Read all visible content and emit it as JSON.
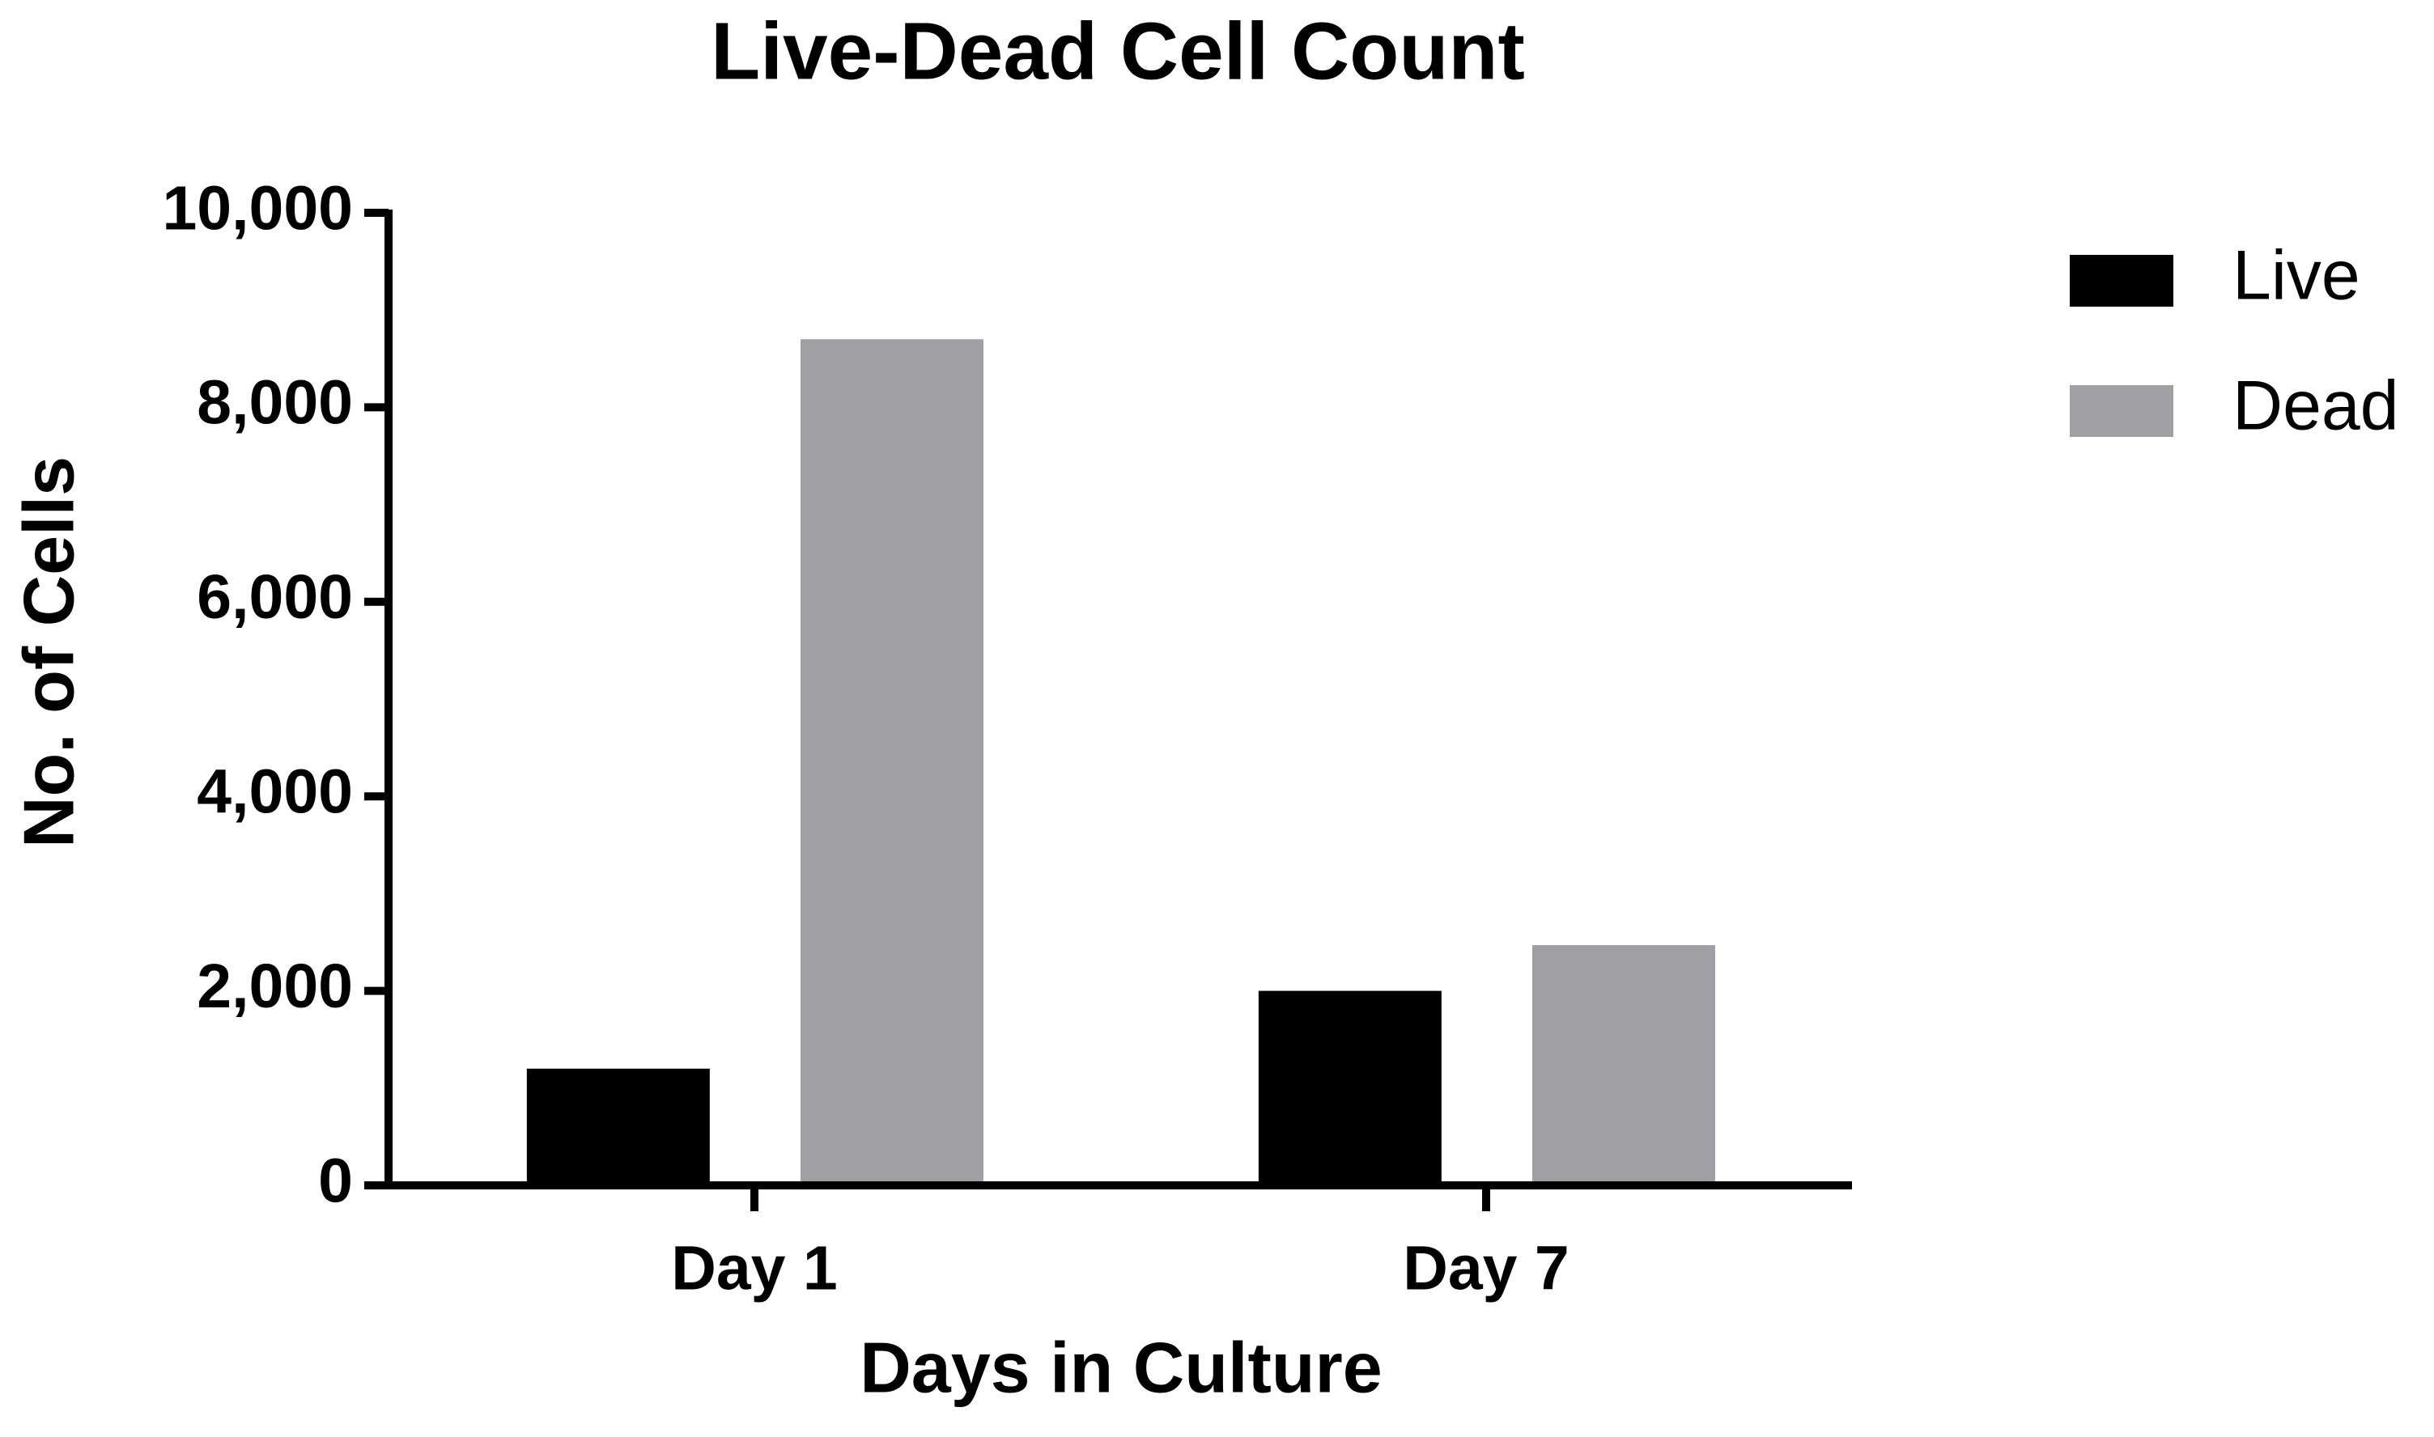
{
  "chart_data": {
    "type": "bar",
    "title": "Live-Dead Cell Count",
    "x_label": "Days in Culture",
    "y_label": "No. of Cells",
    "categories": [
      "Day 1",
      "Day 7"
    ],
    "series": [
      {
        "name": "Live",
        "color": "#000000",
        "values": [
          1200,
          2000
        ]
      },
      {
        "name": "Dead",
        "color": "#a0a0a4",
        "values": [
          8700,
          2470
        ]
      }
    ],
    "ylim": [
      0,
      10000
    ],
    "yticks": [
      0,
      {
        "value": 2000,
        "label": "2,000"
      },
      {
        "value": 4000,
        "label": "4,000"
      },
      {
        "value": 6000,
        "label": "6,000"
      },
      {
        "value": 8000,
        "label": "8,000"
      },
      {
        "value": 10000,
        "label": "10,000"
      }
    ],
    "legend": "upper right"
  }
}
